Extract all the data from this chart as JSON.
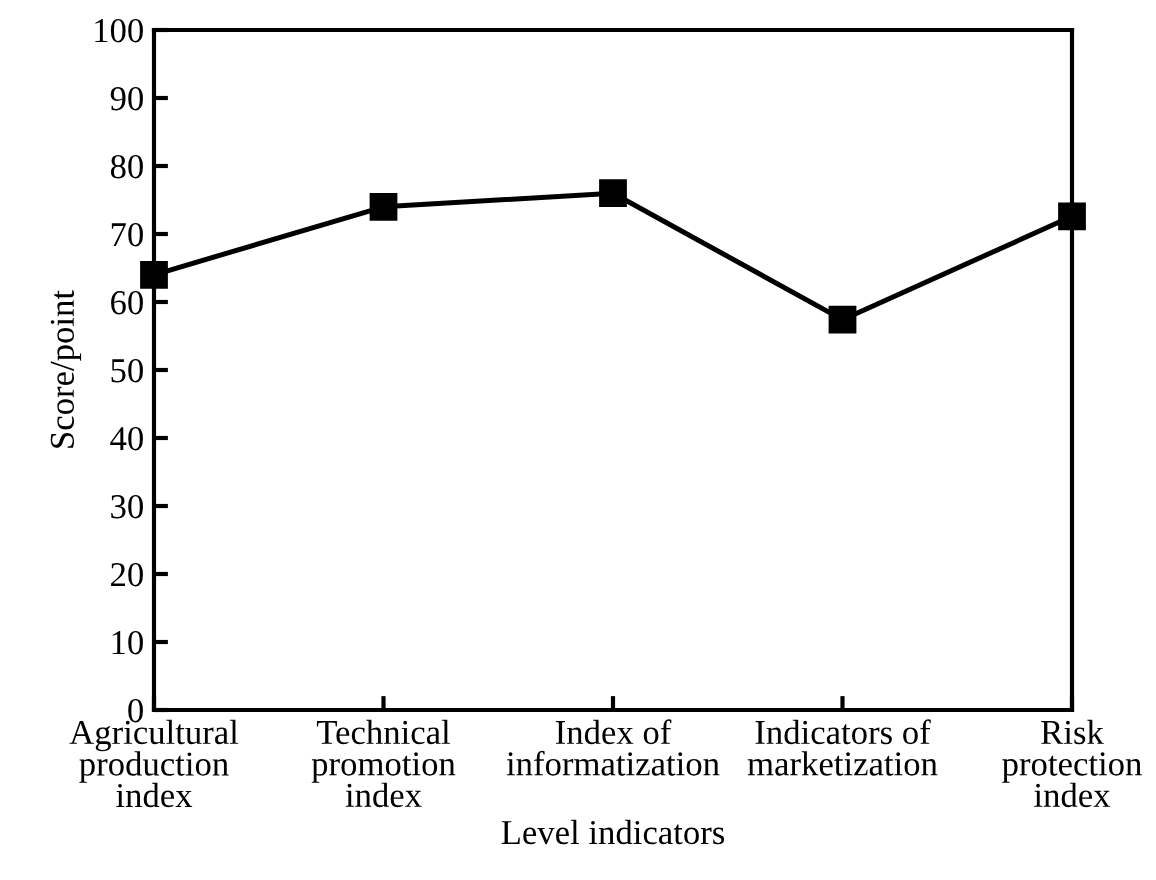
{
  "chart_data": {
    "type": "line",
    "xlabel": "Level indicators",
    "ylabel": "Score/point",
    "categories": [
      "Agricultural\nproduction\nindex",
      "Technical\npromotion\nindex",
      "Index of\ninformatization",
      "Indicators of\nmarketization",
      "Risk\nprotection\nindex"
    ],
    "series": [
      {
        "color": "#000000",
        "values": [
          64,
          74,
          76,
          57.4,
          72.6
        ]
      }
    ],
    "ylim": [
      0,
      100
    ],
    "yticks": [
      0,
      10,
      20,
      30,
      40,
      50,
      60,
      70,
      80,
      90,
      100
    ],
    "marker": "square",
    "line_style": "solid",
    "grid": false,
    "legend": false
  }
}
